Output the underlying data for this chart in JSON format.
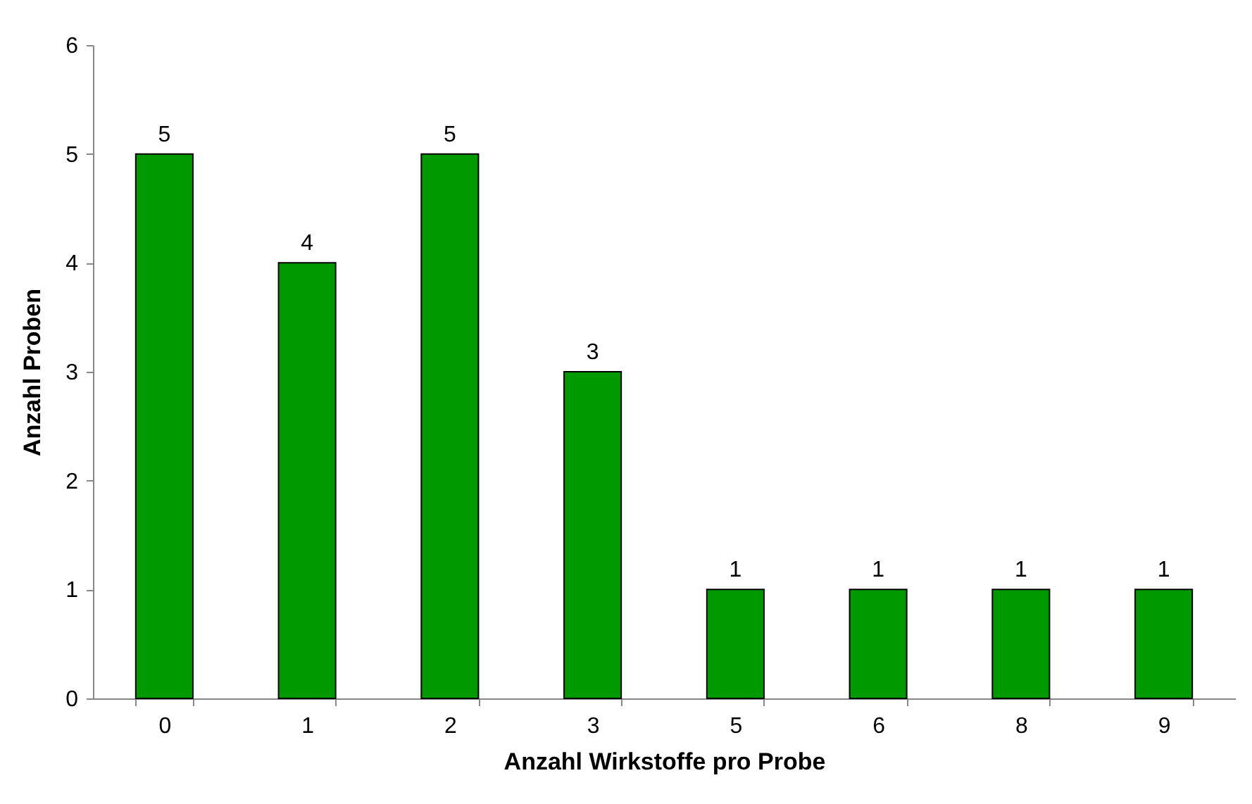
{
  "chart_data": {
    "type": "bar",
    "xlabel": "Anzahl Wirkstoffe pro Probe",
    "ylabel": "Anzahl Proben",
    "categories": [
      "0",
      "1",
      "2",
      "3",
      "5",
      "6",
      "8",
      "9"
    ],
    "values": [
      5,
      4,
      5,
      3,
      1,
      1,
      1,
      1
    ],
    "color": "#009900",
    "ylim": [
      0,
      6
    ],
    "yticks": [
      0,
      1,
      2,
      3,
      4,
      5,
      6
    ],
    "data_labels": true
  }
}
